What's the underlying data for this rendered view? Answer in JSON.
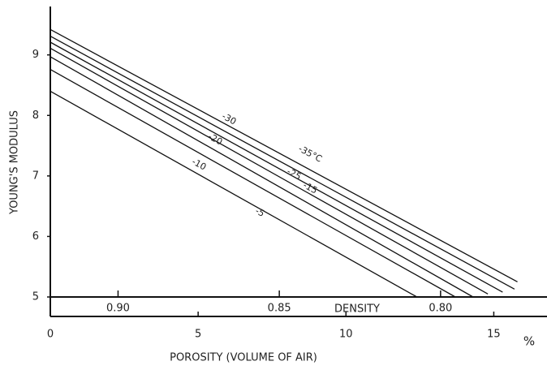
{
  "chart_data": {
    "type": "line",
    "xlabel": "POROSITY (VOLUME OF AIR)",
    "ylabel": "YOUNG'S MODULUS",
    "x_unit": "%",
    "x2label": "DENSITY",
    "xlim": [
      0,
      16.8
    ],
    "xticks": [
      0,
      5,
      10,
      15
    ],
    "ylim": [
      5,
      9.8
    ],
    "yticks": [
      5,
      6,
      7,
      8,
      9
    ],
    "x2lim": [
      0.921,
      0.767
    ],
    "x2ticks": [
      {
        "value": 0.9,
        "label": "0.90"
      },
      0.85,
      {
        "value": 0.8,
        "label": "0.80"
      }
    ],
    "color": "#111111",
    "series": [
      {
        "name": "-5",
        "x": [
          0,
          12.4
        ],
        "values": [
          8.4,
          5.0
        ]
      },
      {
        "name": "-10",
        "x": [
          0,
          13.7
        ],
        "values": [
          8.76,
          5.0
        ]
      },
      {
        "name": "-15",
        "x": [
          0,
          14.3
        ],
        "values": [
          8.97,
          5.0
        ]
      },
      {
        "name": "-20",
        "x": [
          0,
          14.8
        ],
        "values": [
          9.11,
          5.05
        ]
      },
      {
        "name": "-25",
        "x": [
          0,
          15.3
        ],
        "values": [
          9.21,
          5.08
        ]
      },
      {
        "name": "-30",
        "x": [
          0,
          15.7
        ],
        "values": [
          9.31,
          5.13
        ]
      },
      {
        "name": "-35°C",
        "x": [
          0,
          15.8
        ],
        "values": [
          9.42,
          5.25
        ]
      }
    ]
  }
}
